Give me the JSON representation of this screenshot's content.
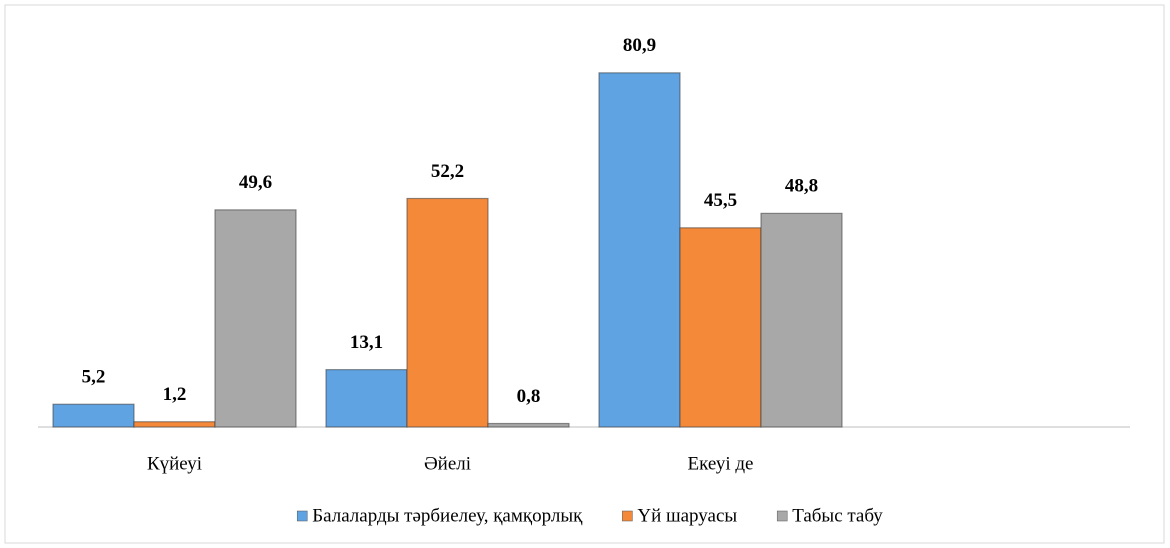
{
  "chart_data": {
    "type": "bar",
    "categories": [
      "Күйеуі",
      "Әйелі",
      "Екеуі де",
      null
    ],
    "series": [
      {
        "name": "Балаларды  тәрбиелеу, қамқорлық",
        "color": "#5fa3e3",
        "values": [
          5.2,
          13.1,
          80.9,
          null
        ],
        "value_labels": [
          "5,2",
          "13,1",
          "80,9",
          null
        ]
      },
      {
        "name": "Үй шаруасы",
        "color": "#f5893a",
        "values": [
          1.2,
          52.2,
          45.5,
          null
        ],
        "value_labels": [
          "1,2",
          "52,2",
          "45,5",
          null
        ]
      },
      {
        "name": "Табыс табу",
        "color": "#a8a8a8",
        "values": [
          49.6,
          0.8,
          48.8,
          null
        ],
        "value_labels": [
          "49,6",
          "0,8",
          "48,8",
          null
        ]
      }
    ],
    "ylim": [
      0,
      90
    ],
    "legend": "bottom"
  }
}
